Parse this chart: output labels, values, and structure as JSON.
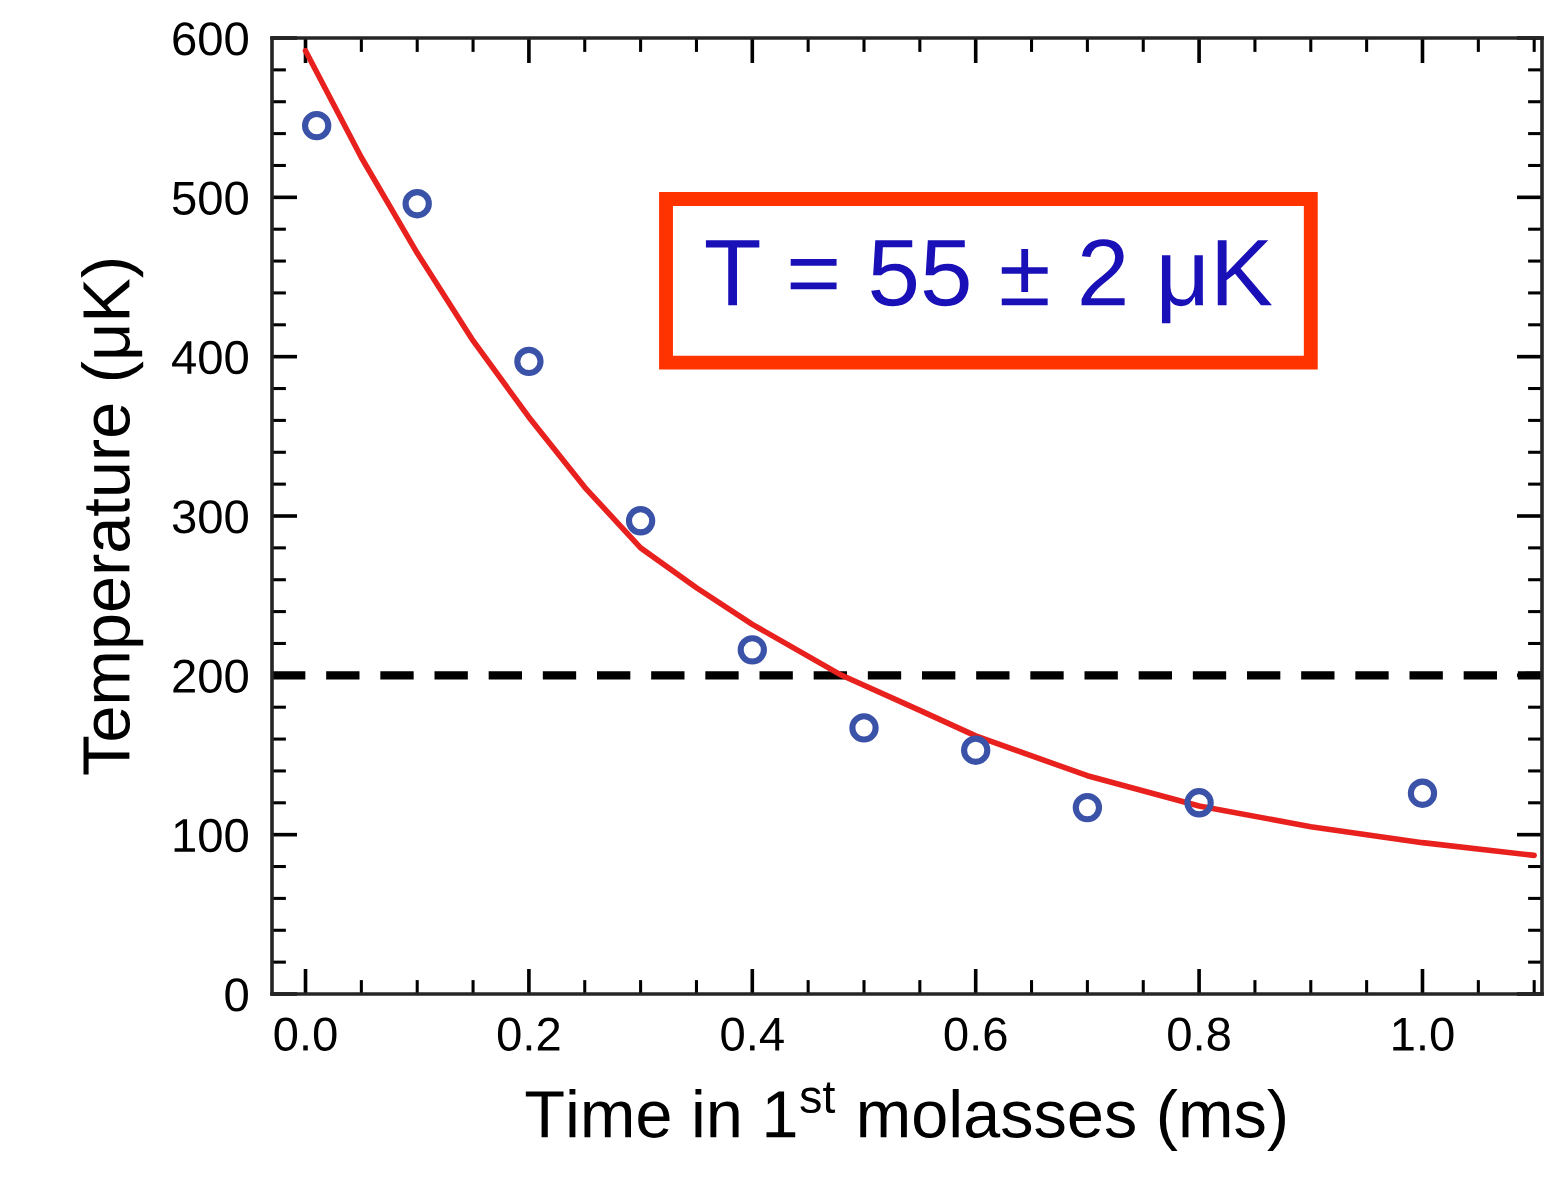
{
  "chart_data": {
    "type": "scatter",
    "xlabel": "Time in 1$^{st}$ molasses (ms)",
    "ylabel": "Temperature (μK)",
    "xlim": [
      -0.03,
      1.107
    ],
    "ylim": [
      0,
      600
    ],
    "xticks": [
      {
        "value": 0,
        "label": "0.0"
      },
      {
        "value": 0.2,
        "label": "0.2"
      },
      {
        "value": 0.4,
        "label": "0.4"
      },
      {
        "value": 0.6,
        "label": "0.6"
      },
      {
        "value": 0.8,
        "label": "0.8"
      },
      {
        "value": 1.0,
        "label": "1.0"
      }
    ],
    "yticks": [
      0,
      100,
      200,
      300,
      400,
      500,
      600
    ],
    "grid": false,
    "legend": false,
    "series": [
      {
        "marker": "circle",
        "color": "#3a52a8",
        "x": [
          0.01,
          0.1,
          0.2,
          0.3,
          0.4,
          0.5,
          0.6,
          0.7,
          0.8,
          1.0
        ],
        "values": [
          545,
          496,
          397,
          297,
          216,
          167,
          153,
          117,
          120,
          126
        ]
      },
      {
        "type": "line",
        "marker": "none",
        "color": "#e8211f",
        "x": [
          0.0,
          0.05,
          0.1,
          0.15,
          0.2,
          0.25,
          0.3,
          0.35,
          0.4,
          0.48,
          0.55,
          0.6,
          0.7,
          0.8,
          0.9,
          1.0,
          1.1
        ],
        "values": [
          592,
          525,
          465,
          410,
          362,
          318,
          280,
          255,
          232,
          200,
          178,
          162,
          137,
          118,
          105,
          95,
          87
        ]
      }
    ],
    "ref_lines": [
      {
        "axis": "y",
        "value": 200,
        "color": "#000000",
        "line_style": "dashed"
      }
    ],
    "annotations": [
      "T = 55 ± 2 μK"
    ]
  }
}
